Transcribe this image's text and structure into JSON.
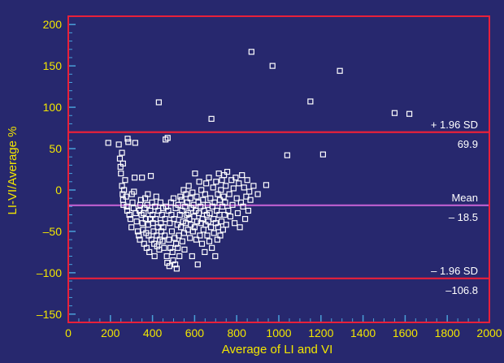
{
  "chart_data": {
    "type": "scatter",
    "xlabel": "Average of LI and VI",
    "ylabel": "LI-VI/Average %",
    "xlim": [
      0,
      2000
    ],
    "ylim": [
      -160,
      210
    ],
    "xticks": [
      0,
      200,
      400,
      600,
      800,
      1000,
      1200,
      1400,
      1600,
      1800,
      2000
    ],
    "yticks": [
      -150,
      -100,
      -50,
      0,
      50,
      100,
      150,
      200
    ],
    "reference_lines": [
      {
        "key": "upper",
        "label": "+ 1.96 SD",
        "value_label": "69.9",
        "value": 69.9,
        "color": "#e8203a"
      },
      {
        "key": "mean",
        "label": "Mean",
        "value_label": "– 18.5",
        "value": -18.5,
        "color": "#c060d0"
      },
      {
        "key": "lower",
        "label": "– 1.96 SD",
        "value_label": "–106.8",
        "value": -106.8,
        "color": "#e8203a"
      }
    ],
    "points": [
      [
        190,
        57
      ],
      [
        240,
        55
      ],
      [
        245,
        38
      ],
      [
        250,
        20
      ],
      [
        255,
        5
      ],
      [
        258,
        -5
      ],
      [
        260,
        -12
      ],
      [
        262,
        -18
      ],
      [
        248,
        28
      ],
      [
        255,
        45
      ],
      [
        260,
        32
      ],
      [
        265,
        0
      ],
      [
        270,
        12
      ],
      [
        275,
        -8
      ],
      [
        278,
        -20
      ],
      [
        280,
        -25
      ],
      [
        282,
        62
      ],
      [
        285,
        58
      ],
      [
        290,
        -30
      ],
      [
        295,
        -35
      ],
      [
        300,
        -45
      ],
      [
        302,
        -5
      ],
      [
        305,
        -15
      ],
      [
        310,
        -22
      ],
      [
        312,
        -2
      ],
      [
        315,
        15
      ],
      [
        318,
        57
      ],
      [
        320,
        -28
      ],
      [
        325,
        -38
      ],
      [
        330,
        -50
      ],
      [
        335,
        -55
      ],
      [
        338,
        -25
      ],
      [
        340,
        -60
      ],
      [
        342,
        -18
      ],
      [
        345,
        -12
      ],
      [
        348,
        -30
      ],
      [
        350,
        15
      ],
      [
        352,
        -40
      ],
      [
        355,
        -48
      ],
      [
        358,
        -28
      ],
      [
        360,
        -65
      ],
      [
        362,
        -22
      ],
      [
        365,
        -10
      ],
      [
        368,
        -35
      ],
      [
        370,
        -52
      ],
      [
        372,
        -70
      ],
      [
        375,
        -18
      ],
      [
        378,
        -5
      ],
      [
        380,
        -42
      ],
      [
        382,
        -55
      ],
      [
        385,
        -75
      ],
      [
        388,
        -35
      ],
      [
        390,
        -25
      ],
      [
        392,
        17
      ],
      [
        395,
        -60
      ],
      [
        398,
        -15
      ],
      [
        400,
        -30
      ],
      [
        402,
        -40
      ],
      [
        405,
        -50
      ],
      [
        408,
        -65
      ],
      [
        410,
        -80
      ],
      [
        412,
        -20
      ],
      [
        415,
        -35
      ],
      [
        418,
        -8
      ],
      [
        420,
        -55
      ],
      [
        422,
        -68
      ],
      [
        425,
        -45
      ],
      [
        428,
        -25
      ],
      [
        430,
        106
      ],
      [
        432,
        -72
      ],
      [
        435,
        -60
      ],
      [
        438,
        -15
      ],
      [
        440,
        -40
      ],
      [
        442,
        -50
      ],
      [
        445,
        -30
      ],
      [
        448,
        -62
      ],
      [
        450,
        -22
      ],
      [
        452,
        -45
      ],
      [
        455,
        -70
      ],
      [
        458,
        -55
      ],
      [
        460,
        -35
      ],
      [
        462,
        61
      ],
      [
        465,
        -20
      ],
      [
        468,
        -80
      ],
      [
        470,
        -88
      ],
      [
        472,
        63
      ],
      [
        475,
        -25
      ],
      [
        478,
        -60
      ],
      [
        480,
        -92
      ],
      [
        482,
        -40
      ],
      [
        485,
        -70
      ],
      [
        488,
        -15
      ],
      [
        490,
        -30
      ],
      [
        492,
        -50
      ],
      [
        495,
        -75
      ],
      [
        498,
        -85
      ],
      [
        500,
        -10
      ],
      [
        502,
        -35
      ],
      [
        505,
        -58
      ],
      [
        508,
        -90
      ],
      [
        510,
        -22
      ],
      [
        512,
        -65
      ],
      [
        515,
        -95
      ],
      [
        518,
        -42
      ],
      [
        520,
        -70
      ],
      [
        522,
        -18
      ],
      [
        525,
        -55
      ],
      [
        528,
        -80
      ],
      [
        530,
        -30
      ],
      [
        532,
        -8
      ],
      [
        535,
        -45
      ],
      [
        538,
        -12
      ],
      [
        540,
        -25
      ],
      [
        542,
        -62
      ],
      [
        545,
        -38
      ],
      [
        548,
        0
      ],
      [
        550,
        -52
      ],
      [
        552,
        -72
      ],
      [
        555,
        -20
      ],
      [
        558,
        -40
      ],
      [
        560,
        -5
      ],
      [
        562,
        -30
      ],
      [
        565,
        -15
      ],
      [
        568,
        -48
      ],
      [
        570,
        -28
      ],
      [
        572,
        5
      ],
      [
        575,
        -35
      ],
      [
        578,
        -58
      ],
      [
        580,
        -10
      ],
      [
        582,
        -42
      ],
      [
        585,
        -22
      ],
      [
        588,
        -80
      ],
      [
        590,
        -3
      ],
      [
        592,
        -50
      ],
      [
        595,
        -18
      ],
      [
        598,
        -32
      ],
      [
        600,
        -45
      ],
      [
        602,
        20
      ],
      [
        605,
        -25
      ],
      [
        608,
        -60
      ],
      [
        610,
        -8
      ],
      [
        612,
        -38
      ],
      [
        615,
        -90
      ],
      [
        618,
        -15
      ],
      [
        620,
        -28
      ],
      [
        622,
        10
      ],
      [
        625,
        -55
      ],
      [
        628,
        -20
      ],
      [
        630,
        -40
      ],
      [
        632,
        0
      ],
      [
        635,
        -65
      ],
      [
        638,
        -35
      ],
      [
        640,
        -12
      ],
      [
        642,
        -48
      ],
      [
        645,
        -25
      ],
      [
        648,
        -75
      ],
      [
        650,
        -5
      ],
      [
        652,
        -42
      ],
      [
        655,
        8
      ],
      [
        658,
        -30
      ],
      [
        660,
        -55
      ],
      [
        662,
        -18
      ],
      [
        665,
        -38
      ],
      [
        668,
        15
      ],
      [
        670,
        -62
      ],
      [
        672,
        -28
      ],
      [
        675,
        -10
      ],
      [
        678,
        -45
      ],
      [
        680,
        86
      ],
      [
        682,
        -70
      ],
      [
        685,
        -20
      ],
      [
        688,
        3
      ],
      [
        690,
        -35
      ],
      [
        692,
        -52
      ],
      [
        695,
        -15
      ],
      [
        698,
        -80
      ],
      [
        700,
        -40
      ],
      [
        702,
        10
      ],
      [
        705,
        -25
      ],
      [
        708,
        -60
      ],
      [
        710,
        -5
      ],
      [
        712,
        -45
      ],
      [
        715,
        20
      ],
      [
        718,
        -30
      ],
      [
        720,
        -12
      ],
      [
        722,
        -55
      ],
      [
        725,
        0
      ],
      [
        728,
        -38
      ],
      [
        730,
        12
      ],
      [
        732,
        -20
      ],
      [
        735,
        -48
      ],
      [
        738,
        -8
      ],
      [
        740,
        18
      ],
      [
        742,
        -30
      ],
      [
        745,
        -15
      ],
      [
        748,
        5
      ],
      [
        750,
        -42
      ],
      [
        755,
        22
      ],
      [
        760,
        -25
      ],
      [
        765,
        -5
      ],
      [
        770,
        -32
      ],
      [
        775,
        12
      ],
      [
        780,
        -18
      ],
      [
        785,
        2
      ],
      [
        790,
        -40
      ],
      [
        795,
        15
      ],
      [
        800,
        -10
      ],
      [
        805,
        -28
      ],
      [
        810,
        8
      ],
      [
        815,
        -45
      ],
      [
        820,
        -15
      ],
      [
        825,
        18
      ],
      [
        830,
        -20
      ],
      [
        835,
        3
      ],
      [
        840,
        -35
      ],
      [
        845,
        -8
      ],
      [
        850,
        12
      ],
      [
        855,
        -25
      ],
      [
        860,
        -2
      ],
      [
        865,
        -12
      ],
      [
        870,
        167
      ],
      [
        880,
        5
      ],
      [
        900,
        -5
      ],
      [
        940,
        6
      ],
      [
        970,
        150
      ],
      [
        1040,
        42
      ],
      [
        1150,
        107
      ],
      [
        1210,
        43
      ],
      [
        1290,
        144
      ],
      [
        1550,
        93
      ],
      [
        1620,
        92
      ]
    ]
  }
}
